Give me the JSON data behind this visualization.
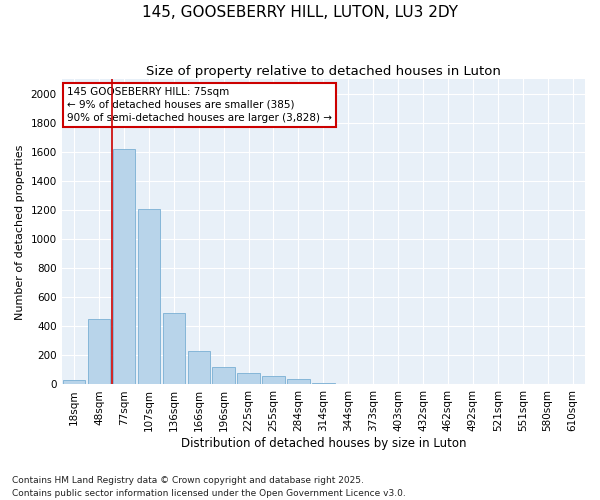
{
  "title": "145, GOOSEBERRY HILL, LUTON, LU3 2DY",
  "subtitle": "Size of property relative to detached houses in Luton",
  "xlabel": "Distribution of detached houses by size in Luton",
  "ylabel": "Number of detached properties",
  "categories": [
    "18sqm",
    "48sqm",
    "77sqm",
    "107sqm",
    "136sqm",
    "166sqm",
    "196sqm",
    "225sqm",
    "255sqm",
    "284sqm",
    "314sqm",
    "344sqm",
    "373sqm",
    "403sqm",
    "432sqm",
    "462sqm",
    "492sqm",
    "521sqm",
    "551sqm",
    "580sqm",
    "610sqm"
  ],
  "values": [
    30,
    450,
    1620,
    1210,
    490,
    230,
    120,
    80,
    55,
    35,
    10,
    0,
    0,
    0,
    0,
    0,
    0,
    0,
    0,
    0,
    0
  ],
  "bar_color": "#b8d4ea",
  "bar_edge_color": "#7aafd4",
  "vline_x": 1.5,
  "vline_color": "#cc0000",
  "annotation_text": "145 GOOSEBERRY HILL: 75sqm\n← 9% of detached houses are smaller (385)\n90% of semi-detached houses are larger (3,828) →",
  "annotation_box_facecolor": "#ffffff",
  "annotation_box_edgecolor": "#cc0000",
  "ylim": [
    0,
    2100
  ],
  "yticks": [
    0,
    200,
    400,
    600,
    800,
    1000,
    1200,
    1400,
    1600,
    1800,
    2000
  ],
  "background_color": "#e8f0f8",
  "grid_color": "#ffffff",
  "footnote": "Contains HM Land Registry data © Crown copyright and database right 2025.\nContains public sector information licensed under the Open Government Licence v3.0.",
  "title_fontsize": 11,
  "subtitle_fontsize": 9.5,
  "xlabel_fontsize": 8.5,
  "ylabel_fontsize": 8,
  "tick_fontsize": 7.5,
  "annotation_fontsize": 7.5,
  "footnote_fontsize": 6.5
}
